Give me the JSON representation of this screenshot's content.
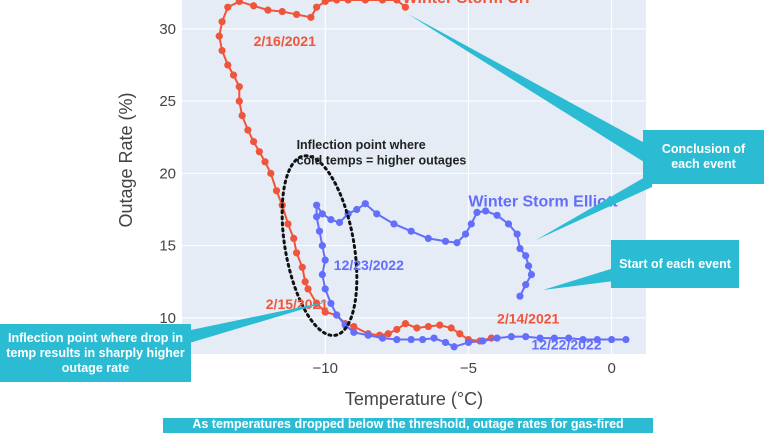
{
  "chart_data": {
    "type": "scatter",
    "xlabel": "Temperature (°C)",
    "ylabel": "Outage Rate (%)",
    "xlim": [
      -15,
      1.2
    ],
    "ylim": [
      7.5,
      32
    ],
    "xticks": [
      -10,
      -5,
      0
    ],
    "xtick_labels": [
      "−10",
      "−5",
      "0"
    ],
    "yticks": [
      10,
      15,
      20,
      25,
      30
    ],
    "grid": true,
    "series": [
      {
        "name": "Winter Storm Uri",
        "color": "#EF553B",
        "mode": "lines+markers",
        "points": [
          [
            -4.2,
            8.6
          ],
          [
            -4.6,
            8.4
          ],
          [
            -5.0,
            8.5
          ],
          [
            -5.3,
            8.9
          ],
          [
            -5.6,
            9.3
          ],
          [
            -6.0,
            9.5
          ],
          [
            -6.4,
            9.4
          ],
          [
            -6.8,
            9.3
          ],
          [
            -7.2,
            9.6
          ],
          [
            -7.5,
            9.2
          ],
          [
            -7.8,
            8.9
          ],
          [
            -8.1,
            8.8
          ],
          [
            -8.5,
            8.9
          ],
          [
            -9.0,
            9.4
          ],
          [
            -9.3,
            9.6
          ],
          [
            -9.6,
            10.2
          ],
          [
            -10.0,
            10.4
          ],
          [
            -10.3,
            11.0
          ],
          [
            -10.6,
            12.0
          ],
          [
            -10.7,
            12.5
          ],
          [
            -10.8,
            13.5
          ],
          [
            -11.0,
            14.5
          ],
          [
            -11.1,
            15.5
          ],
          [
            -11.3,
            16.5
          ],
          [
            -11.5,
            17.8
          ],
          [
            -11.7,
            18.8
          ],
          [
            -11.9,
            20.0
          ],
          [
            -12.1,
            20.8
          ],
          [
            -12.3,
            21.5
          ],
          [
            -12.5,
            22.2
          ],
          [
            -12.7,
            23.0
          ],
          [
            -12.9,
            24.0
          ],
          [
            -13.0,
            25.0
          ],
          [
            -13.0,
            26.0
          ],
          [
            -13.2,
            26.8
          ],
          [
            -13.4,
            27.5
          ],
          [
            -13.6,
            28.5
          ],
          [
            -13.7,
            29.5
          ],
          [
            -13.6,
            30.5
          ],
          [
            -13.4,
            31.5
          ],
          [
            -13.0,
            31.9
          ],
          [
            -12.5,
            31.6
          ],
          [
            -12.0,
            31.3
          ],
          [
            -11.5,
            31.2
          ],
          [
            -11.0,
            31.0
          ],
          [
            -10.5,
            30.8
          ],
          [
            -10.3,
            31.5
          ],
          [
            -10.0,
            31.9
          ],
          [
            -9.6,
            32.0
          ],
          [
            -9.2,
            32.0
          ],
          [
            -8.6,
            32.0
          ],
          [
            -8.0,
            32.0
          ],
          [
            -7.5,
            32.0
          ],
          [
            -7.2,
            31.5
          ]
        ],
        "point_labels": [
          {
            "x": -4.2,
            "y": 8.6,
            "text": "2/14/2021"
          },
          {
            "x": -10.6,
            "y": 12.0,
            "text": "2/15/2021"
          },
          {
            "x": -13.7,
            "y": 29.5,
            "text": "2/16/2021"
          }
        ]
      },
      {
        "name": "Winter Storm Elliott",
        "color": "#636EFA",
        "mode": "lines+markers",
        "points": [
          [
            0.5,
            8.5
          ],
          [
            0.0,
            8.5
          ],
          [
            -0.5,
            8.5
          ],
          [
            -1.0,
            8.5
          ],
          [
            -1.5,
            8.6
          ],
          [
            -2.0,
            8.6
          ],
          [
            -2.5,
            8.6
          ],
          [
            -3.0,
            8.7
          ],
          [
            -3.5,
            8.7
          ],
          [
            -4.0,
            8.6
          ],
          [
            -4.5,
            8.4
          ],
          [
            -5.0,
            8.3
          ],
          [
            -5.5,
            8.0
          ],
          [
            -5.8,
            8.3
          ],
          [
            -6.2,
            8.6
          ],
          [
            -6.6,
            8.5
          ],
          [
            -7.0,
            8.5
          ],
          [
            -7.5,
            8.5
          ],
          [
            -8.0,
            8.6
          ],
          [
            -8.5,
            8.8
          ],
          [
            -9.0,
            9.0
          ],
          [
            -9.3,
            9.5
          ],
          [
            -9.6,
            10.2
          ],
          [
            -9.8,
            11.0
          ],
          [
            -10.0,
            12.0
          ],
          [
            -10.1,
            13.0
          ],
          [
            -10.0,
            14.0
          ],
          [
            -10.1,
            15.0
          ],
          [
            -10.2,
            16.0
          ],
          [
            -10.3,
            17.0
          ],
          [
            -10.3,
            17.8
          ],
          [
            -10.1,
            17.2
          ],
          [
            -9.8,
            16.8
          ],
          [
            -9.5,
            16.6
          ],
          [
            -9.2,
            17.2
          ],
          [
            -8.9,
            17.5
          ],
          [
            -8.6,
            17.9
          ],
          [
            -8.2,
            17.2
          ],
          [
            -7.6,
            16.5
          ],
          [
            -7.0,
            16.0
          ],
          [
            -6.4,
            15.5
          ],
          [
            -5.8,
            15.3
          ],
          [
            -5.4,
            15.2
          ],
          [
            -5.1,
            15.8
          ],
          [
            -4.9,
            16.5
          ],
          [
            -4.7,
            17.3
          ],
          [
            -4.4,
            17.4
          ],
          [
            -4.0,
            17.1
          ],
          [
            -3.6,
            16.5
          ],
          [
            -3.3,
            15.8
          ],
          [
            -3.2,
            14.8
          ],
          [
            -3.0,
            14.3
          ],
          [
            -2.9,
            13.6
          ],
          [
            -2.8,
            13.0
          ],
          [
            -3.0,
            12.3
          ],
          [
            -3.2,
            11.5
          ]
        ],
        "point_labels": [
          {
            "x": 0.5,
            "y": 8.5,
            "text": "12/22/2022"
          },
          {
            "x": -10.0,
            "y": 14.0,
            "text": "12/23/2022"
          }
        ]
      }
    ],
    "annotations": [
      {
        "text": "Inflection point where cold temps = higher outages",
        "shape": "dotted-ellipse",
        "center": [
          -10.2,
          15.0
        ],
        "radius_x": 1.2,
        "radius_y": 6.3
      }
    ]
  },
  "callouts": {
    "conclusion": "Conclusion of each event",
    "start": "Start of each event",
    "inflection": "Inflection point where drop in temp results in sharply higher outage rate"
  },
  "caption": "As temperatures dropped below the threshold, outage rates for gas-fired"
}
